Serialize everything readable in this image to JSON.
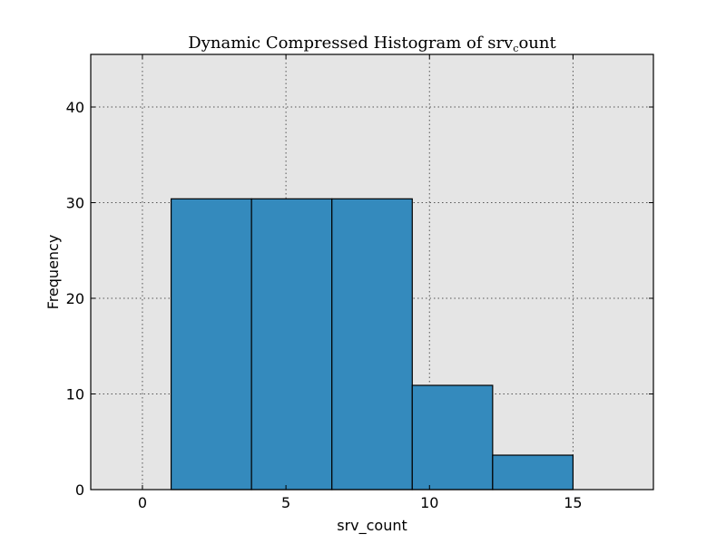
{
  "chart_data": {
    "type": "bar",
    "title_main": "Dynamic Compressed Histogram of srv",
    "title_sub": "c",
    "title_end": "ount",
    "xlabel": "srv_count",
    "ylabel": "Frequency",
    "xlim": [
      -1.8,
      17.8
    ],
    "ylim": [
      0,
      45.5
    ],
    "xticks": [
      0,
      5,
      10,
      15
    ],
    "yticks": [
      0,
      10,
      20,
      30,
      40
    ],
    "grid": true,
    "bar_color": "#348abd",
    "background_color": "#e5e5e5",
    "bins": [
      {
        "start": 1.0,
        "end": 3.8,
        "value": 30.4
      },
      {
        "start": 3.8,
        "end": 6.6,
        "value": 30.4
      },
      {
        "start": 6.6,
        "end": 9.4,
        "value": 30.4
      },
      {
        "start": 9.4,
        "end": 12.2,
        "value": 10.9
      },
      {
        "start": 12.2,
        "end": 15.0,
        "value": 3.6
      }
    ]
  }
}
